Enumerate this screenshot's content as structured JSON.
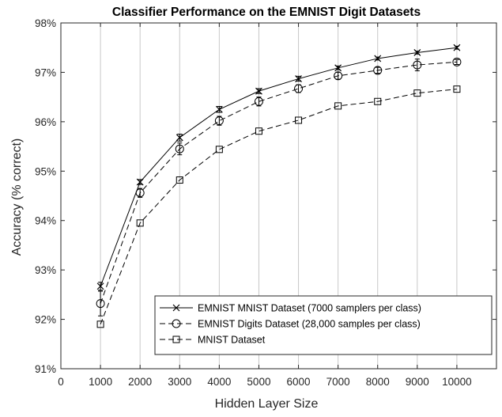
{
  "chart_data": {
    "type": "line",
    "title": "Classifier Performance on the EMNIST Digit Datasets",
    "xlabel": "Hidden Layer Size",
    "ylabel": "Accuracy (% correct)",
    "xlim": [
      0,
      11000
    ],
    "ylim": [
      91,
      98
    ],
    "x_ticks": [
      0,
      1000,
      2000,
      3000,
      4000,
      5000,
      6000,
      7000,
      8000,
      9000,
      10000
    ],
    "x_tick_labels": [
      "0",
      "1000",
      "2000",
      "3000",
      "4000",
      "5000",
      "6000",
      "7000",
      "8000",
      "9000",
      "10000"
    ],
    "y_ticks": [
      91,
      92,
      93,
      94,
      95,
      96,
      97,
      98
    ],
    "y_tick_labels": [
      "91%",
      "92%",
      "93%",
      "94%",
      "95%",
      "96%",
      "97%",
      "98%"
    ],
    "grid": "vertical",
    "legend_position": "bottom-right",
    "x": [
      1000,
      2000,
      3000,
      4000,
      5000,
      6000,
      7000,
      8000,
      9000,
      10000
    ],
    "series": [
      {
        "name": "EMNIST MNIST Dataset (7000 samplers per class)",
        "marker": "x",
        "line_style": "solid",
        "values": [
          92.67,
          94.78,
          95.68,
          96.25,
          96.62,
          96.87,
          97.09,
          97.28,
          97.4,
          97.5
        ],
        "errors": [
          0.08,
          0.05,
          0.07,
          0.06,
          0.05,
          0.05,
          0.04,
          0.03,
          0.03,
          0.03
        ]
      },
      {
        "name": "EMNIST Digits Dataset (28,000 samples per class)",
        "marker": "circle",
        "line_style": "dashed",
        "values": [
          92.32,
          94.56,
          95.45,
          96.02,
          96.41,
          96.67,
          96.93,
          97.04,
          97.15,
          97.21
        ],
        "errors": [
          0.25,
          0.09,
          0.12,
          0.09,
          0.09,
          0.08,
          0.07,
          0.06,
          0.12,
          0.05
        ]
      },
      {
        "name": "MNIST Dataset",
        "marker": "square",
        "line_style": "dashed",
        "values": [
          91.9,
          93.95,
          94.82,
          95.44,
          95.81,
          96.03,
          96.32,
          96.41,
          96.58,
          96.66
        ],
        "errors": [
          0,
          0,
          0,
          0,
          0,
          0,
          0,
          0,
          0,
          0
        ]
      }
    ]
  }
}
